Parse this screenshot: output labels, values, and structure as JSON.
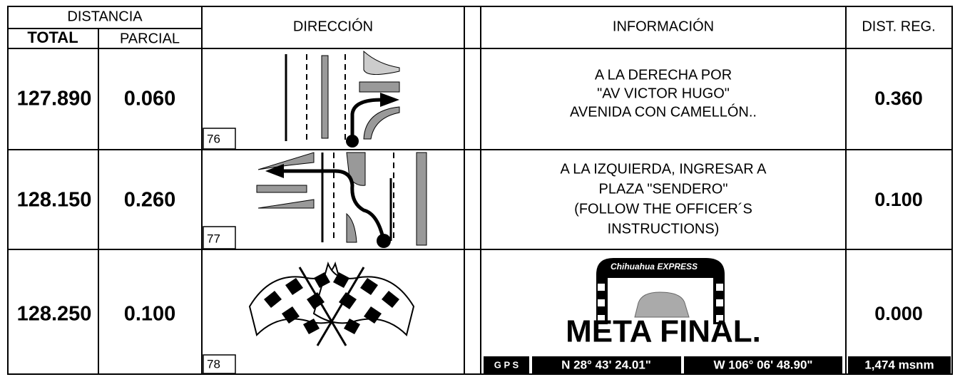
{
  "header": {
    "distancia": "DISTANCIA",
    "total": "TOTAL",
    "parcial": "PARCIAL",
    "direccion": "DIRECCIÓN",
    "informacion": "INFORMACIÓN",
    "dist_reg": "DIST. REG."
  },
  "rows": [
    {
      "total": "127.890",
      "parcial": "0.060",
      "box": "76",
      "info": [
        "A LA DERECHA POR",
        "\"AV VICTOR HUGO\"",
        "AVENIDA CON CAMELLÓN.."
      ],
      "dist_reg": "0.360"
    },
    {
      "total": "128.150",
      "parcial": "0.260",
      "box": "77",
      "info": [
        "A LA IZQUIERDA, INGRESAR A",
        "PLAZA \"SENDERO\"",
        "(FOLLOW THE OFFICER´S",
        "INSTRUCTIONS)"
      ],
      "dist_reg": "0.100"
    },
    {
      "total": "128.250",
      "parcial": "0.100",
      "box": "78",
      "logo": "Chihuahua EXPRESS",
      "finish": "META FINAL.",
      "gps": [
        "G P S",
        "N 28° 43' 24.01\"",
        "W 106° 06' 48.90\"",
        "1,474 msnm"
      ],
      "dist_reg": "0.000"
    }
  ]
}
